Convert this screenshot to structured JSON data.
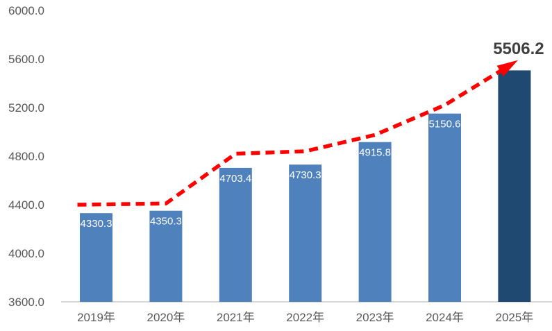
{
  "chart_data": {
    "type": "bar",
    "title": "",
    "xlabel": "",
    "ylabel": "",
    "categories": [
      "2019年",
      "2020年",
      "2021年",
      "2022年",
      "2023年",
      "2024年",
      "2025年"
    ],
    "values": [
      4330.3,
      4350.3,
      4703.4,
      4730.3,
      4915.8,
      5150.6,
      5506.2
    ],
    "value_labels": [
      "4330.3",
      "4350.3",
      "4703.4",
      "4730.3",
      "4915.8",
      "5150.6",
      "5506.2"
    ],
    "highlight_index": 6,
    "ylim": [
      3600,
      6000
    ],
    "ytick_step": 400,
    "ytick_labels": [
      "3600.0",
      "4000.0",
      "4400.0",
      "4800.0",
      "5200.0",
      "5600.0",
      "6000.0"
    ],
    "grid": false,
    "legend": "none",
    "colors": {
      "bar": "#4F81BD",
      "bar_highlight": "#1F4971",
      "trend": "#FE0000",
      "axis_text": "#595959",
      "baseline": "#D9D9D9",
      "bar_label_text": "#FFFFFF",
      "highlight_label_text": "#404040"
    },
    "trend_arrow": {
      "style": "dashed",
      "arrowhead": true,
      "values_estimated": [
        4400,
        4410,
        4820,
        4840,
        4975,
        5220,
        5590
      ]
    }
  }
}
